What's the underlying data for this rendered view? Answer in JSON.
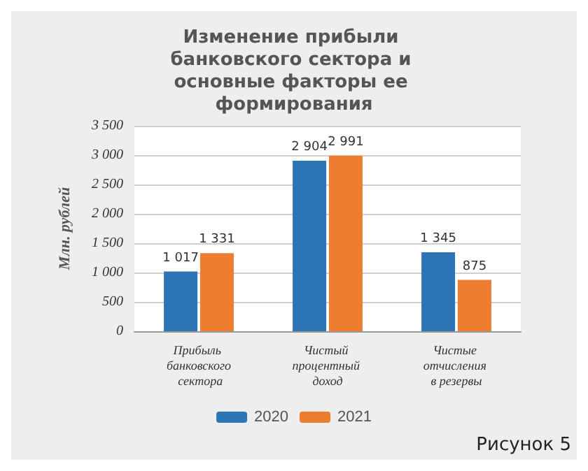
{
  "chart_data": {
    "type": "bar",
    "title": "Изменение прибыли банковского сектора и основные факторы ее формирования",
    "ylabel": "Млн. рублей",
    "categories": [
      "Прибыль банковского сектора",
      "Чистый процентный доход",
      "Чистые отчисления в резервы"
    ],
    "series": [
      {
        "name": "2020",
        "color": "#2e75b6",
        "values": [
          1017,
          2904,
          1345
        ],
        "value_labels": [
          "1 017",
          "2 904",
          "1 345"
        ]
      },
      {
        "name": "2021",
        "color": "#ed7d31",
        "values": [
          1331,
          2991,
          875
        ],
        "value_labels": [
          "1 331",
          "2 991",
          "875"
        ]
      }
    ],
    "ylim": [
      0,
      3500
    ],
    "yticks": [
      0,
      {
        "value": 500,
        "label": "500"
      },
      {
        "value": 1000,
        "label": "1 000"
      },
      {
        "value": 1500,
        "label": "1 500"
      },
      {
        "value": 2000,
        "label": "2 000"
      },
      {
        "value": 2500,
        "label": "2 500"
      },
      {
        "value": 3000,
        "label": "3 000"
      },
      {
        "value": 3500,
        "label": "3 500"
      }
    ],
    "grid": "y",
    "legend": "bottom",
    "annotations": [
      "Рисунок 5"
    ]
  }
}
